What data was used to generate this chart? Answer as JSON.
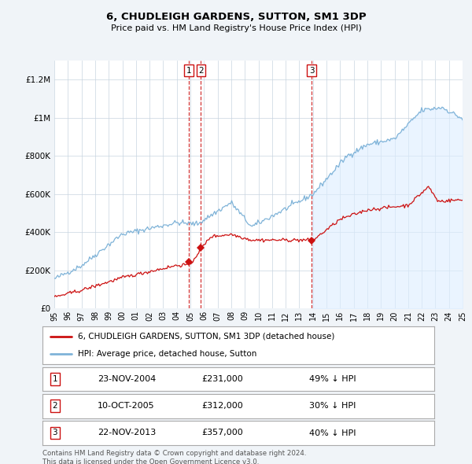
{
  "title": "6, CHUDLEIGH GARDENS, SUTTON, SM1 3DP",
  "subtitle": "Price paid vs. HM Land Registry's House Price Index (HPI)",
  "bg_color": "#f0f4f8",
  "plot_bg_color": "#ffffff",
  "red_line_color": "#cc1111",
  "blue_line_color": "#7fb3d8",
  "blue_fill_color": "#ddeeff",
  "red_line_label": "6, CHUDLEIGH GARDENS, SUTTON, SM1 3DP (detached house)",
  "blue_line_label": "HPI: Average price, detached house, Sutton",
  "transactions": [
    {
      "num": 1,
      "date": "23-NOV-2004",
      "price": 231000,
      "pct": "49% ↓ HPI",
      "x": 2004.9
    },
    {
      "num": 2,
      "date": "10-OCT-2005",
      "price": 312000,
      "pct": "30% ↓ HPI",
      "x": 2005.78
    },
    {
      "num": 3,
      "date": "22-NOV-2013",
      "price": 357000,
      "pct": "40% ↓ HPI",
      "x": 2013.9
    }
  ],
  "footer": "Contains HM Land Registry data © Crown copyright and database right 2024.\nThis data is licensed under the Open Government Licence v3.0.",
  "ylim": [
    0,
    1300000
  ],
  "xlim_start": 1995,
  "xlim_end": 2025,
  "fill_start_x": 2013.9
}
